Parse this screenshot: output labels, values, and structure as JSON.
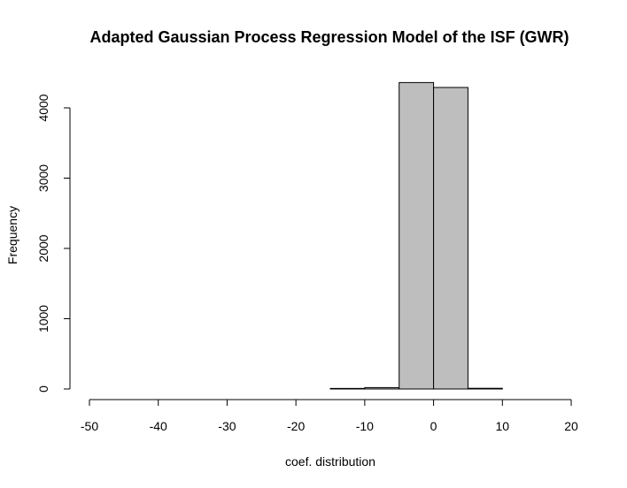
{
  "chart_data": {
    "type": "bar",
    "title": "Adapted Gaussian Process Regression Model of the ISF (GWR)",
    "xlabel": "coef. distribution",
    "ylabel": "Frequency",
    "bins": [
      {
        "x0": -50,
        "x1": -45,
        "count": 0
      },
      {
        "x0": -45,
        "x1": -40,
        "count": 0
      },
      {
        "x0": -40,
        "x1": -35,
        "count": 0
      },
      {
        "x0": -35,
        "x1": -30,
        "count": 0
      },
      {
        "x0": -30,
        "x1": -25,
        "count": 0
      },
      {
        "x0": -25,
        "x1": -20,
        "count": 0
      },
      {
        "x0": -20,
        "x1": -15,
        "count": 0
      },
      {
        "x0": -15,
        "x1": -10,
        "count": 8
      },
      {
        "x0": -10,
        "x1": -5,
        "count": 20
      },
      {
        "x0": -5,
        "x1": 0,
        "count": 4360
      },
      {
        "x0": 0,
        "x1": 5,
        "count": 4290
      },
      {
        "x0": 5,
        "x1": 10,
        "count": 10
      },
      {
        "x0": 10,
        "x1": 15,
        "count": 0
      },
      {
        "x0": 15,
        "x1": 20,
        "count": 0
      }
    ],
    "xticks": [
      "-50",
      "-40",
      "-30",
      "-20",
      "-10",
      "0",
      "10",
      "20"
    ],
    "yticks": [
      "0",
      "1000",
      "2000",
      "3000",
      "4000"
    ],
    "xlim": [
      -50,
      20
    ],
    "ylim": [
      0,
      4000
    ],
    "bar_color": "#bebebe",
    "grid": false
  }
}
